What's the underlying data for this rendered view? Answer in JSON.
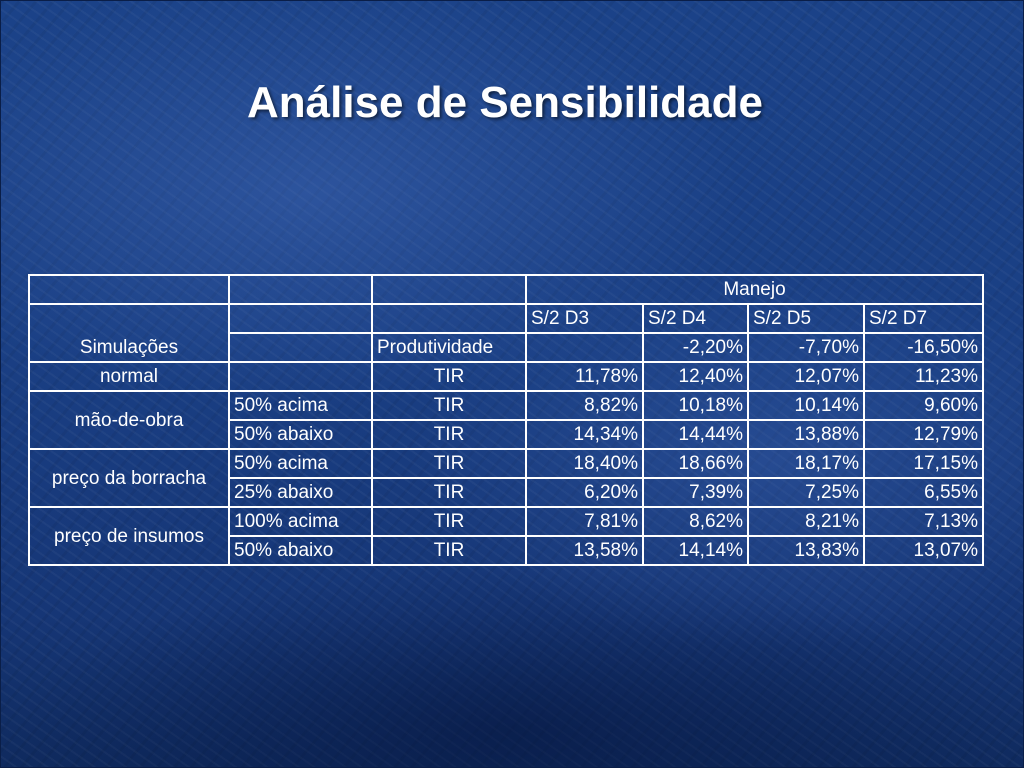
{
  "slide": {
    "title": "Análise de Sensibilidade"
  },
  "table": {
    "header": {
      "group_label": "Manejo",
      "simulacoes_label": "Simulações",
      "produtividade_label": "Produtividade",
      "columns": [
        "S/2 D3",
        "S/2 D4",
        "S/2 D5",
        "S/2 D7"
      ],
      "produtividade_values": [
        "",
        "-2,20%",
        "-7,70%",
        "-16,50%"
      ]
    },
    "groups": [
      {
        "name": "normal",
        "rows": [
          {
            "variation": "",
            "metric": "TIR",
            "values": [
              "11,78%",
              "12,40%",
              "12,07%",
              "11,23%"
            ]
          }
        ]
      },
      {
        "name": "mão-de-obra",
        "rows": [
          {
            "variation": "50% acima",
            "metric": "TIR",
            "values": [
              "8,82%",
              "10,18%",
              "10,14%",
              "9,60%"
            ]
          },
          {
            "variation": "50% abaixo",
            "metric": "TIR",
            "values": [
              "14,34%",
              "14,44%",
              "13,88%",
              "12,79%"
            ]
          }
        ]
      },
      {
        "name": "preço da borracha",
        "rows": [
          {
            "variation": "50% acima",
            "metric": "TIR",
            "values": [
              "18,40%",
              "18,66%",
              "18,17%",
              "17,15%"
            ]
          },
          {
            "variation": "25% abaixo",
            "metric": "TIR",
            "values": [
              "6,20%",
              "7,39%",
              "7,25%",
              "6,55%"
            ]
          }
        ]
      },
      {
        "name": "preço de insumos",
        "rows": [
          {
            "variation": "100% acima",
            "metric": "TIR",
            "values": [
              "7,81%",
              "8,62%",
              "8,21%",
              "7,13%"
            ]
          },
          {
            "variation": "50% abaixo",
            "metric": "TIR",
            "values": [
              "13,58%",
              "14,14%",
              "13,83%",
              "13,07%"
            ]
          }
        ]
      }
    ]
  }
}
